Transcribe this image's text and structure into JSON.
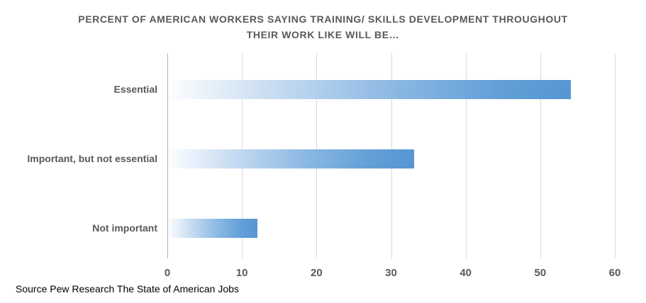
{
  "title": {
    "line1": "PERCENT OF AMERICAN WORKERS SAYING TRAINING/ SKILLS DEVELOPMENT THROUGHOUT",
    "line2": "THEIR WORK LIKE WILL BE…"
  },
  "source": "Source Pew Research The State of American Jobs",
  "chart_data": {
    "type": "bar",
    "orientation": "horizontal",
    "title": "PERCENT OF AMERICAN WORKERS SAYING TRAINING/ SKILLS DEVELOPMENT THROUGHOUT THEIR WORK LIKE WILL BE…",
    "categories": [
      "Essential",
      "Important, but not essential",
      "Not important"
    ],
    "values": [
      54,
      33,
      12
    ],
    "xlabel": "",
    "ylabel": "",
    "xlim": [
      0,
      60
    ],
    "xticks": [
      0,
      10,
      20,
      30,
      40,
      50,
      60
    ],
    "grid": "vertical",
    "legend": "none",
    "annotation": "Source Pew Research The State of American Jobs",
    "colors": {
      "bar_gradient_start": "#fdfeff",
      "bar_gradient_end": "#5596d3",
      "title_text": "#595959",
      "label_text": "#595959",
      "gridline": "#d9d9d9",
      "axis_line": "#b3b3b3",
      "source_text": "#000000"
    }
  }
}
